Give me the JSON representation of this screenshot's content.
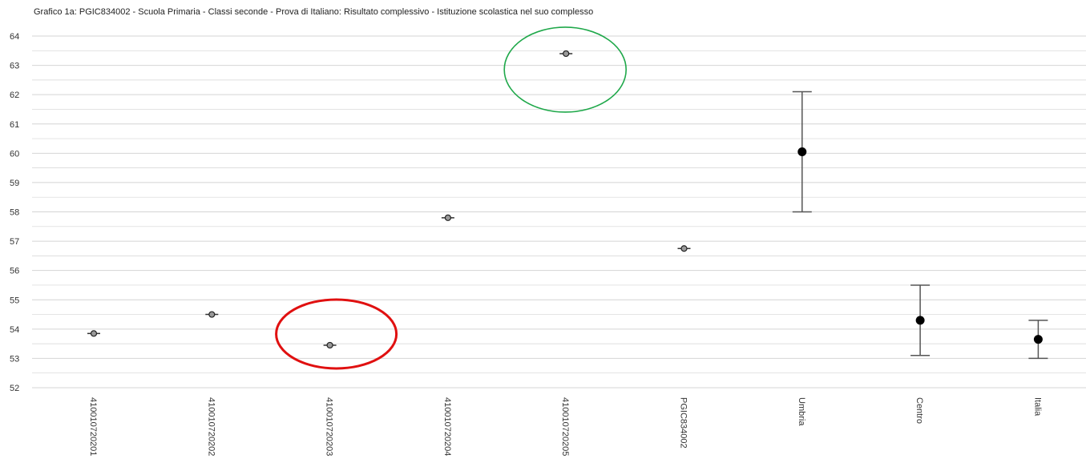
{
  "chart_data": {
    "type": "scatter",
    "title": "Grafico 1a: PGIC834002 - Scuola Primaria - Classi seconde - Prova di Italiano: Risultato complessivo - Istituzione scolastica nel suo complesso",
    "xlabel": "",
    "ylabel": "",
    "ylim": [
      52,
      64
    ],
    "y_ticks": [
      "64",
      "63",
      "62",
      "61",
      "60",
      "59",
      "58",
      "57",
      "56",
      "55",
      "54",
      "53",
      "52"
    ],
    "grid": true,
    "categories": [
      "410010720201",
      "410010720202",
      "410010720203",
      "410010720204",
      "410010720205",
      "PGIC834002",
      "Umbria",
      "Centro",
      "Italia"
    ],
    "values": [
      53.85,
      54.5,
      53.45,
      57.8,
      63.4,
      56.75,
      60.05,
      54.3,
      53.65
    ],
    "error_low": [
      null,
      null,
      null,
      null,
      null,
      null,
      58.0,
      53.1,
      53.0
    ],
    "error_high": [
      null,
      null,
      null,
      null,
      null,
      null,
      62.1,
      55.5,
      54.3
    ],
    "marker_style": [
      "hollow",
      "hollow",
      "hollow",
      "hollow",
      "hollow",
      "hollow",
      "filled",
      "filled",
      "filled"
    ],
    "annotations": [
      {
        "shape": "ellipse",
        "color": "#e01010",
        "category": "410010720203"
      },
      {
        "shape": "ellipse",
        "color": "#1fa84a",
        "category": "410010720205"
      }
    ],
    "colors": {
      "grid": "#d4d4d4",
      "marker": "#000000",
      "errorbar": "#555555"
    }
  }
}
